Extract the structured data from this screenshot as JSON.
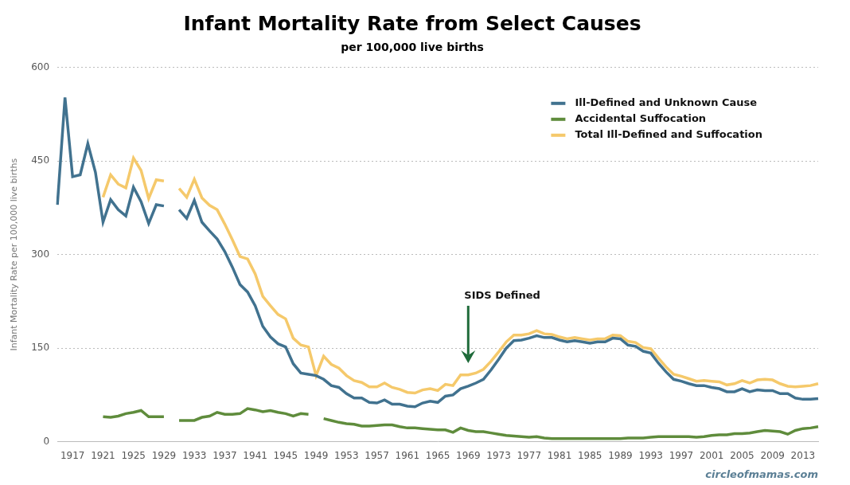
{
  "chart_data": {
    "type": "line",
    "title": "Infant Mortality Rate from Select Causes",
    "subtitle": "per 100,000 live births",
    "y_label": "Infant Mortality Rate per 100,000 live births",
    "source": "circleofmamas.com",
    "categories": [
      null,
      null,
      "1917",
      null,
      null,
      null,
      "1921",
      null,
      null,
      null,
      "1925",
      null,
      null,
      null,
      "1929",
      null,
      null,
      null,
      "1933",
      null,
      null,
      null,
      "1937",
      null,
      null,
      null,
      "1941",
      null,
      null,
      null,
      "1945",
      null,
      null,
      null,
      "1949",
      null,
      null,
      null,
      "1953",
      null,
      null,
      null,
      "1957",
      null,
      null,
      null,
      "1961",
      null,
      null,
      null,
      "1965",
      null,
      null,
      null,
      "1969",
      null,
      null,
      null,
      "1973",
      null,
      null,
      null,
      "1977",
      null,
      null,
      null,
      "1981",
      null,
      null,
      null,
      "1985",
      null,
      null,
      null,
      "1989",
      null,
      null,
      null,
      "1993",
      null,
      null,
      null,
      "1997",
      null,
      null,
      null,
      "2001",
      null,
      null,
      null,
      "2005",
      null,
      null,
      null,
      "2009",
      null,
      null,
      null,
      "2013",
      null,
      null
    ],
    "series": [
      {
        "name": "Ill-Defined and Unknown Cause",
        "color": "#41728f",
        "values": [
          380,
          552,
          425,
          428,
          478,
          432,
          352,
          388,
          372,
          362,
          408,
          385,
          350,
          380,
          378,
          null,
          372,
          358,
          387,
          352,
          338,
          325,
          305,
          280,
          252,
          240,
          218,
          185,
          168,
          157,
          152,
          125,
          110,
          108,
          106,
          100,
          90,
          87,
          77,
          70,
          70,
          63,
          62,
          67,
          60,
          60,
          57,
          56,
          62,
          65,
          63,
          73,
          75,
          85,
          89,
          94,
          100,
          115,
          132,
          150,
          162,
          163,
          166,
          170,
          167,
          167,
          163,
          160,
          162,
          160,
          158,
          160,
          160,
          166,
          165,
          155,
          153,
          145,
          142,
          126,
          112,
          100,
          97,
          93,
          90,
          90,
          87,
          85,
          80,
          80,
          85,
          80,
          83,
          82,
          82,
          77,
          77,
          70,
          68,
          68,
          69
        ]
      },
      {
        "name": "Accidental Suffocation",
        "color": "#5f8c3c",
        "values": [
          null,
          null,
          null,
          null,
          null,
          null,
          40,
          39,
          41,
          45,
          47,
          50,
          40,
          40,
          40,
          null,
          34,
          34,
          34,
          39,
          41,
          47,
          44,
          44,
          45,
          53,
          51,
          48,
          50,
          47,
          45,
          41,
          45,
          44,
          null,
          37,
          34,
          31,
          29,
          28,
          25,
          25,
          26,
          27,
          27,
          24,
          22,
          22,
          21,
          20,
          19,
          19,
          15,
          22,
          18,
          16,
          16,
          14,
          12,
          10,
          9,
          8,
          7,
          8,
          6,
          5,
          5,
          5,
          5,
          5,
          5,
          5,
          5,
          5,
          5,
          6,
          6,
          6,
          7,
          8,
          8,
          8,
          8,
          8,
          7,
          8,
          10,
          11,
          11,
          13,
          13,
          14,
          16,
          18,
          17,
          16,
          12,
          18,
          21,
          22,
          24
        ]
      },
      {
        "name": "Total Ill-Defined and Suffocation",
        "color": "#f5c96b",
        "values": [
          null,
          null,
          null,
          null,
          null,
          null,
          392,
          428,
          413,
          407,
          455,
          435,
          390,
          420,
          418,
          null,
          406,
          392,
          421,
          391,
          379,
          372,
          349,
          324,
          297,
          293,
          269,
          233,
          218,
          204,
          197,
          166,
          155,
          152,
          106,
          137,
          124,
          118,
          106,
          98,
          95,
          88,
          88,
          94,
          87,
          84,
          79,
          78,
          83,
          85,
          82,
          92,
          90,
          107,
          107,
          110,
          116,
          129,
          144,
          160,
          171,
          171,
          173,
          178,
          173,
          172,
          168,
          165,
          167,
          165,
          163,
          165,
          165,
          171,
          170,
          161,
          159,
          151,
          149,
          134,
          120,
          108,
          105,
          101,
          97,
          98,
          97,
          96,
          91,
          93,
          98,
          94,
          99,
          100,
          99,
          93,
          89,
          88,
          89,
          90,
          93
        ]
      }
    ],
    "annotations": [
      {
        "text": "SIDS Defined",
        "x": "1969",
        "y": 126,
        "color": "#1f6b3a"
      }
    ],
    "ylim": [
      0,
      600
    ],
    "yticks": [
      0,
      150,
      300,
      450,
      600
    ],
    "grid": true,
    "legend": "upper right"
  }
}
